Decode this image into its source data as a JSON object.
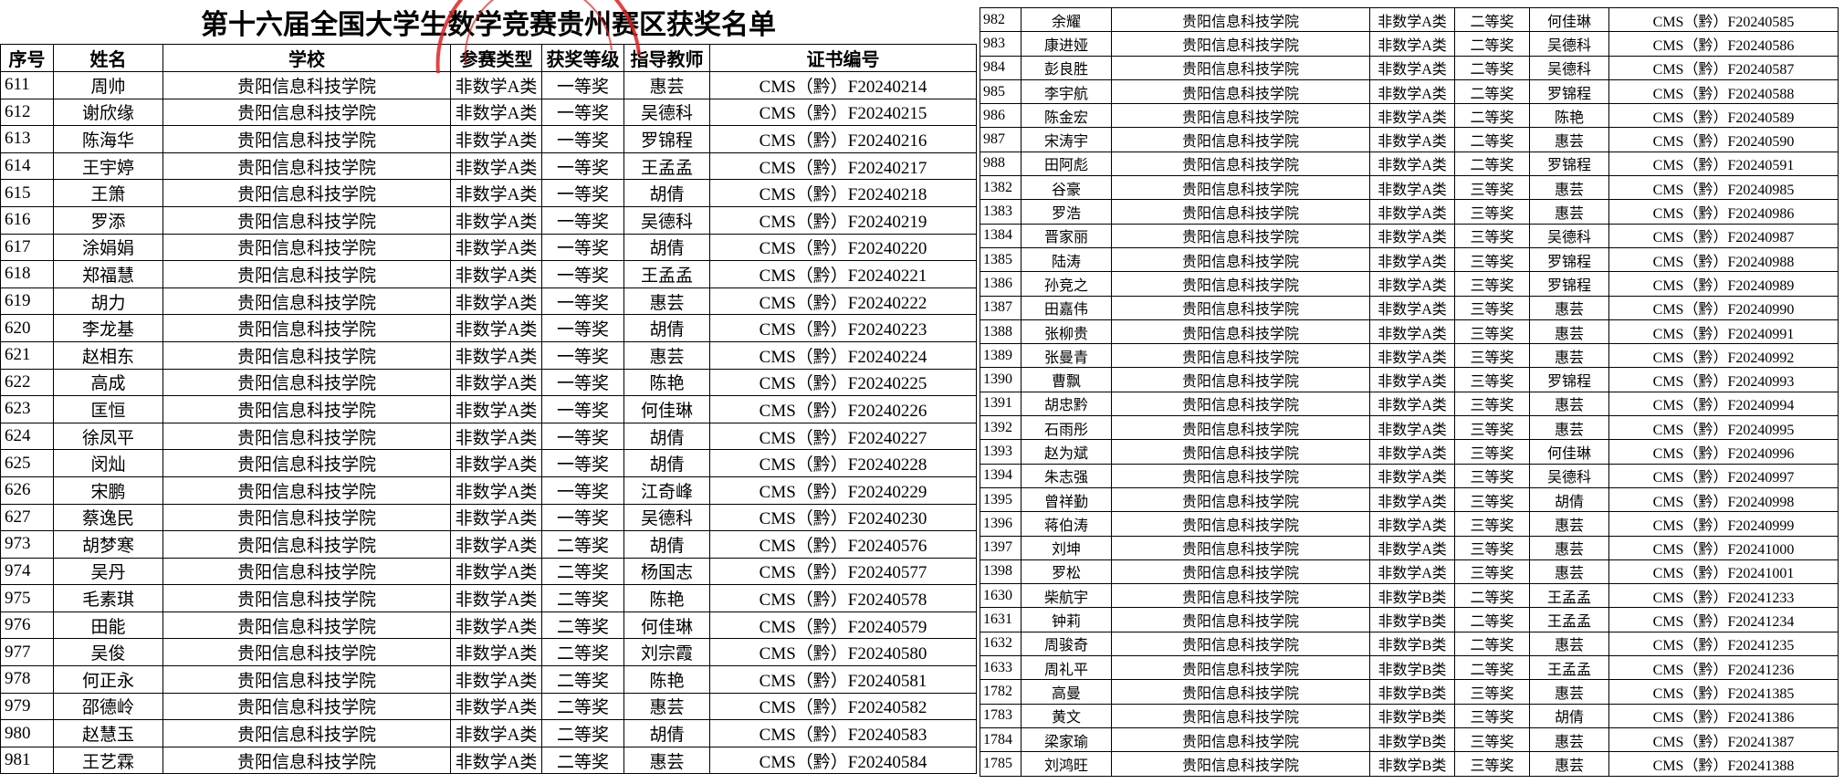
{
  "title": "第十六届全国大学生数学竞赛贵州赛区获奖名单",
  "headers": [
    "序号",
    "姓名",
    "学校",
    "参赛类型",
    "获奖等级",
    "指导教师",
    "证书编号"
  ],
  "left_rows": [
    [
      "611",
      "周帅",
      "贵阳信息科技学院",
      "非数学A类",
      "一等奖",
      "惠芸",
      "CMS（黔）F20240214"
    ],
    [
      "612",
      "谢欣缘",
      "贵阳信息科技学院",
      "非数学A类",
      "一等奖",
      "吴德科",
      "CMS（黔）F20240215"
    ],
    [
      "613",
      "陈海华",
      "贵阳信息科技学院",
      "非数学A类",
      "一等奖",
      "罗锦程",
      "CMS（黔）F20240216"
    ],
    [
      "614",
      "王宇婷",
      "贵阳信息科技学院",
      "非数学A类",
      "一等奖",
      "王孟孟",
      "CMS（黔）F20240217"
    ],
    [
      "615",
      "王箫",
      "贵阳信息科技学院",
      "非数学A类",
      "一等奖",
      "胡倩",
      "CMS（黔）F20240218"
    ],
    [
      "616",
      "罗添",
      "贵阳信息科技学院",
      "非数学A类",
      "一等奖",
      "吴德科",
      "CMS（黔）F20240219"
    ],
    [
      "617",
      "涂娟娟",
      "贵阳信息科技学院",
      "非数学A类",
      "一等奖",
      "胡倩",
      "CMS（黔）F20240220"
    ],
    [
      "618",
      "郑福慧",
      "贵阳信息科技学院",
      "非数学A类",
      "一等奖",
      "王孟孟",
      "CMS（黔）F20240221"
    ],
    [
      "619",
      "胡力",
      "贵阳信息科技学院",
      "非数学A类",
      "一等奖",
      "惠芸",
      "CMS（黔）F20240222"
    ],
    [
      "620",
      "李龙基",
      "贵阳信息科技学院",
      "非数学A类",
      "一等奖",
      "胡倩",
      "CMS（黔）F20240223"
    ],
    [
      "621",
      "赵相东",
      "贵阳信息科技学院",
      "非数学A类",
      "一等奖",
      "惠芸",
      "CMS（黔）F20240224"
    ],
    [
      "622",
      "高成",
      "贵阳信息科技学院",
      "非数学A类",
      "一等奖",
      "陈艳",
      "CMS（黔）F20240225"
    ],
    [
      "623",
      "匡恒",
      "贵阳信息科技学院",
      "非数学A类",
      "一等奖",
      "何佳琳",
      "CMS（黔）F20240226"
    ],
    [
      "624",
      "徐凤平",
      "贵阳信息科技学院",
      "非数学A类",
      "一等奖",
      "胡倩",
      "CMS（黔）F20240227"
    ],
    [
      "625",
      "闵灿",
      "贵阳信息科技学院",
      "非数学A类",
      "一等奖",
      "胡倩",
      "CMS（黔）F20240228"
    ],
    [
      "626",
      "宋鹏",
      "贵阳信息科技学院",
      "非数学A类",
      "一等奖",
      "江奇峰",
      "CMS（黔）F20240229"
    ],
    [
      "627",
      "蔡逸民",
      "贵阳信息科技学院",
      "非数学A类",
      "一等奖",
      "吴德科",
      "CMS（黔）F20240230"
    ],
    [
      "973",
      "胡梦寒",
      "贵阳信息科技学院",
      "非数学A类",
      "二等奖",
      "胡倩",
      "CMS（黔）F20240576"
    ],
    [
      "974",
      "吴丹",
      "贵阳信息科技学院",
      "非数学A类",
      "二等奖",
      "杨国志",
      "CMS（黔）F20240577"
    ],
    [
      "975",
      "毛素琪",
      "贵阳信息科技学院",
      "非数学A类",
      "二等奖",
      "陈艳",
      "CMS（黔）F20240578"
    ],
    [
      "976",
      "田能",
      "贵阳信息科技学院",
      "非数学A类",
      "二等奖",
      "何佳琳",
      "CMS（黔）F20240579"
    ],
    [
      "977",
      "吴俊",
      "贵阳信息科技学院",
      "非数学A类",
      "二等奖",
      "刘宗霞",
      "CMS（黔）F20240580"
    ],
    [
      "978",
      "何正永",
      "贵阳信息科技学院",
      "非数学A类",
      "二等奖",
      "陈艳",
      "CMS（黔）F20240581"
    ],
    [
      "979",
      "邵德岭",
      "贵阳信息科技学院",
      "非数学A类",
      "二等奖",
      "惠芸",
      "CMS（黔）F20240582"
    ],
    [
      "980",
      "赵慧玉",
      "贵阳信息科技学院",
      "非数学A类",
      "二等奖",
      "胡倩",
      "CMS（黔）F20240583"
    ],
    [
      "981",
      "王艺霖",
      "贵阳信息科技学院",
      "非数学A类",
      "二等奖",
      "惠芸",
      "CMS（黔）F20240584"
    ]
  ],
  "right_rows": [
    [
      "982",
      "余耀",
      "贵阳信息科技学院",
      "非数学A类",
      "二等奖",
      "何佳琳",
      "CMS（黔）F20240585"
    ],
    [
      "983",
      "康进娅",
      "贵阳信息科技学院",
      "非数学A类",
      "二等奖",
      "吴德科",
      "CMS（黔）F20240586"
    ],
    [
      "984",
      "彭良胜",
      "贵阳信息科技学院",
      "非数学A类",
      "二等奖",
      "吴德科",
      "CMS（黔）F20240587"
    ],
    [
      "985",
      "李宇航",
      "贵阳信息科技学院",
      "非数学A类",
      "二等奖",
      "罗锦程",
      "CMS（黔）F20240588"
    ],
    [
      "986",
      "陈金宏",
      "贵阳信息科技学院",
      "非数学A类",
      "二等奖",
      "陈艳",
      "CMS（黔）F20240589"
    ],
    [
      "987",
      "宋涛宇",
      "贵阳信息科技学院",
      "非数学A类",
      "二等奖",
      "惠芸",
      "CMS（黔）F20240590"
    ],
    [
      "988",
      "田阿彪",
      "贵阳信息科技学院",
      "非数学A类",
      "二等奖",
      "罗锦程",
      "CMS（黔）F20240591"
    ],
    [
      "1382",
      "谷豪",
      "贵阳信息科技学院",
      "非数学A类",
      "三等奖",
      "惠芸",
      "CMS（黔）F20240985"
    ],
    [
      "1383",
      "罗浩",
      "贵阳信息科技学院",
      "非数学A类",
      "三等奖",
      "惠芸",
      "CMS（黔）F20240986"
    ],
    [
      "1384",
      "晋家丽",
      "贵阳信息科技学院",
      "非数学A类",
      "三等奖",
      "吴德科",
      "CMS（黔）F20240987"
    ],
    [
      "1385",
      "陆涛",
      "贵阳信息科技学院",
      "非数学A类",
      "三等奖",
      "罗锦程",
      "CMS（黔）F20240988"
    ],
    [
      "1386",
      "孙竞之",
      "贵阳信息科技学院",
      "非数学A类",
      "三等奖",
      "罗锦程",
      "CMS（黔）F20240989"
    ],
    [
      "1387",
      "田嘉伟",
      "贵阳信息科技学院",
      "非数学A类",
      "三等奖",
      "惠芸",
      "CMS（黔）F20240990"
    ],
    [
      "1388",
      "张柳贵",
      "贵阳信息科技学院",
      "非数学A类",
      "三等奖",
      "惠芸",
      "CMS（黔）F20240991"
    ],
    [
      "1389",
      "张曼青",
      "贵阳信息科技学院",
      "非数学A类",
      "三等奖",
      "惠芸",
      "CMS（黔）F20240992"
    ],
    [
      "1390",
      "曹飘",
      "贵阳信息科技学院",
      "非数学A类",
      "三等奖",
      "罗锦程",
      "CMS（黔）F20240993"
    ],
    [
      "1391",
      "胡忠黔",
      "贵阳信息科技学院",
      "非数学A类",
      "三等奖",
      "惠芸",
      "CMS（黔）F20240994"
    ],
    [
      "1392",
      "石雨彤",
      "贵阳信息科技学院",
      "非数学A类",
      "三等奖",
      "惠芸",
      "CMS（黔）F20240995"
    ],
    [
      "1393",
      "赵为斌",
      "贵阳信息科技学院",
      "非数学A类",
      "三等奖",
      "何佳琳",
      "CMS（黔）F20240996"
    ],
    [
      "1394",
      "朱志强",
      "贵阳信息科技学院",
      "非数学A类",
      "三等奖",
      "吴德科",
      "CMS（黔）F20240997"
    ],
    [
      "1395",
      "曾祥勤",
      "贵阳信息科技学院",
      "非数学A类",
      "三等奖",
      "胡倩",
      "CMS（黔）F20240998"
    ],
    [
      "1396",
      "蒋伯涛",
      "贵阳信息科技学院",
      "非数学A类",
      "三等奖",
      "惠芸",
      "CMS（黔）F20240999"
    ],
    [
      "1397",
      "刘坤",
      "贵阳信息科技学院",
      "非数学A类",
      "三等奖",
      "惠芸",
      "CMS（黔）F20241000"
    ],
    [
      "1398",
      "罗松",
      "贵阳信息科技学院",
      "非数学A类",
      "三等奖",
      "惠芸",
      "CMS（黔）F20241001"
    ],
    [
      "1630",
      "柴航宇",
      "贵阳信息科技学院",
      "非数学B类",
      "二等奖",
      "王孟孟",
      "CMS（黔）F20241233"
    ],
    [
      "1631",
      "钟莉",
      "贵阳信息科技学院",
      "非数学B类",
      "二等奖",
      "王孟孟",
      "CMS（黔）F20241234"
    ],
    [
      "1632",
      "周骏奇",
      "贵阳信息科技学院",
      "非数学B类",
      "二等奖",
      "惠芸",
      "CMS（黔）F20241235"
    ],
    [
      "1633",
      "周礼平",
      "贵阳信息科技学院",
      "非数学B类",
      "二等奖",
      "王孟孟",
      "CMS（黔）F20241236"
    ],
    [
      "1782",
      "高曼",
      "贵阳信息科技学院",
      "非数学B类",
      "三等奖",
      "惠芸",
      "CMS（黔）F20241385"
    ],
    [
      "1783",
      "黄文",
      "贵阳信息科技学院",
      "非数学B类",
      "三等奖",
      "胡倩",
      "CMS（黔）F20241386"
    ],
    [
      "1784",
      "梁家瑜",
      "贵阳信息科技学院",
      "非数学B类",
      "三等奖",
      "惠芸",
      "CMS（黔）F20241387"
    ],
    [
      "1785",
      "刘鸿旺",
      "贵阳信息科技学院",
      "非数学B类",
      "三等奖",
      "惠芸",
      "CMS（黔）F20241388"
    ]
  ]
}
